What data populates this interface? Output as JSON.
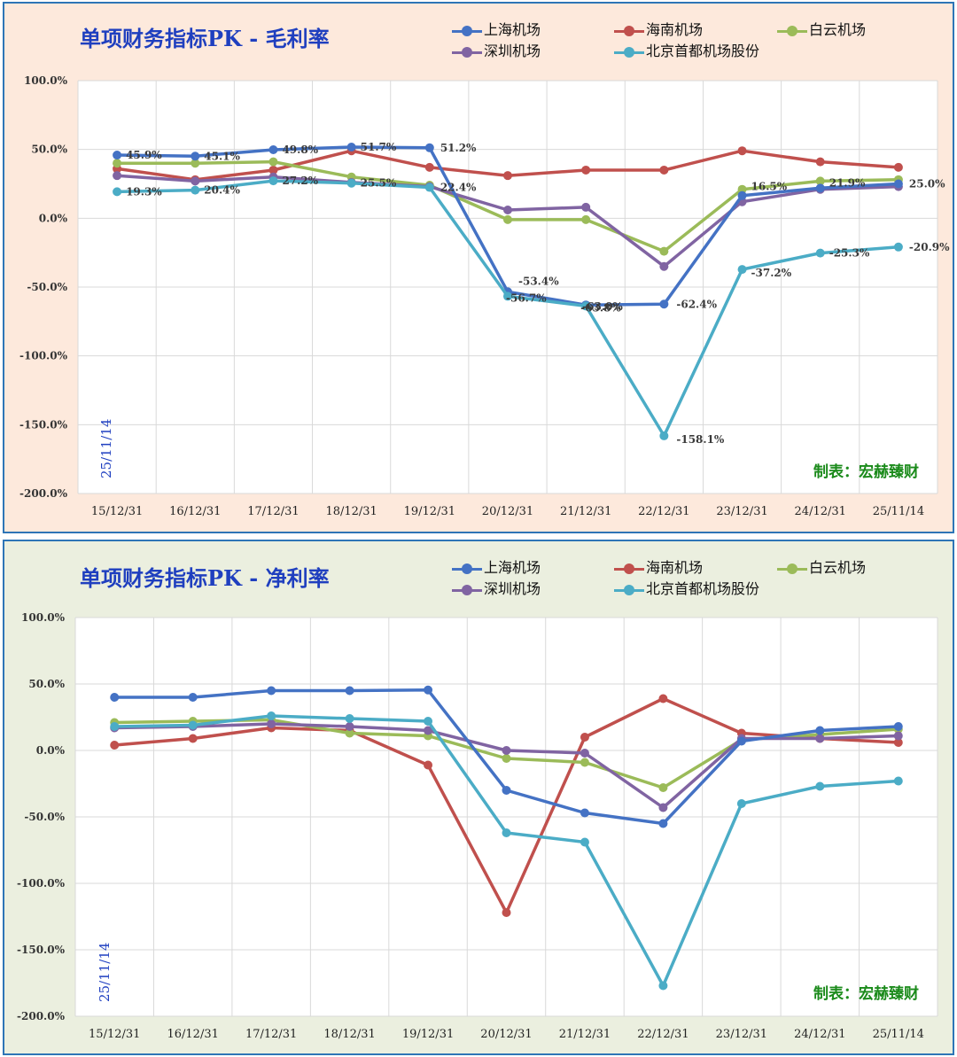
{
  "colors": {
    "上海机场": "#4472c4",
    "海南机场": "#c0504d",
    "白云机场": "#9bbb59",
    "深圳机场": "#8064a2",
    "北京首都机场股份": "#4bacc6"
  },
  "legend_order": [
    "上海机场",
    "海南机场",
    "白云机场",
    "深圳机场",
    "北京首都机场股份"
  ],
  "credit": "制表：宏赫臻财",
  "datestamp": "25/11/14",
  "chart_data": [
    {
      "type": "line",
      "title": "单项财务指标PK - 毛利率",
      "categories": [
        "15/12/31",
        "16/12/31",
        "17/12/31",
        "18/12/31",
        "19/12/31",
        "20/12/31",
        "21/12/31",
        "22/12/31",
        "23/12/31",
        "24/12/31",
        "25/11/14"
      ],
      "ylim": [
        -200,
        100
      ],
      "yticks": [
        "100.0%",
        "50.0%",
        "0.0%",
        "-50.0%",
        "-100.0%",
        "-150.0%",
        "-200.0%"
      ],
      "grid": true,
      "legend": "top",
      "series": [
        {
          "name": "上海机场",
          "values": [
            45.9,
            45.1,
            49.8,
            51.7,
            51.2,
            -53.4,
            -63.0,
            -62.4,
            16.5,
            21.9,
            25.0
          ]
        },
        {
          "name": "海南机场",
          "values": [
            36,
            28,
            35,
            49,
            37,
            31,
            35,
            35,
            49,
            41,
            37
          ]
        },
        {
          "name": "白云机场",
          "values": [
            40,
            40,
            41,
            30,
            24,
            -1,
            -1,
            -24,
            21,
            27,
            28
          ]
        },
        {
          "name": "深圳机场",
          "values": [
            31,
            27,
            30,
            26,
            23,
            6,
            8,
            -35,
            12,
            21,
            23
          ]
        },
        {
          "name": "北京首都机场股份",
          "values": [
            19.3,
            20.4,
            27.2,
            25.5,
            22.4,
            -56.7,
            -63.8,
            -158.1,
            -37.2,
            -25.3,
            -20.9
          ]
        }
      ],
      "labels": [
        {
          "text": "45.9%",
          "series": "上海机场",
          "index": 0
        },
        {
          "text": "45.1%",
          "series": "上海机场",
          "index": 1
        },
        {
          "text": "49.8%",
          "series": "上海机场",
          "index": 2
        },
        {
          "text": "51.7%",
          "series": "上海机场",
          "index": 3
        },
        {
          "text": "51.2%",
          "series": "上海机场",
          "index": 4
        },
        {
          "text": "-53.4%",
          "series": "上海机场",
          "index": 5
        },
        {
          "text": "-63.0%",
          "series": "上海机场",
          "index": 6
        },
        {
          "text": "-62.4%",
          "series": "上海机场",
          "index": 7
        },
        {
          "text": "16.5%",
          "series": "上海机场",
          "index": 8
        },
        {
          "text": "21.9%",
          "series": "上海机场",
          "index": 9
        },
        {
          "text": "25.0%",
          "series": "上海机场",
          "index": 10
        },
        {
          "text": "19.3%",
          "series": "北京首都机场股份",
          "index": 0
        },
        {
          "text": "20.4%",
          "series": "北京首都机场股份",
          "index": 1
        },
        {
          "text": "27.2%",
          "series": "北京首都机场股份",
          "index": 2
        },
        {
          "text": "25.5%",
          "series": "北京首都机场股份",
          "index": 3
        },
        {
          "text": "22.4%",
          "series": "北京首都机场股份",
          "index": 4
        },
        {
          "text": "-56.7%",
          "series": "北京首都机场股份",
          "index": 5
        },
        {
          "text": "-63.8%",
          "series": "北京首都机场股份",
          "index": 6
        },
        {
          "text": "-158.1%",
          "series": "北京首都机场股份",
          "index": 7
        },
        {
          "text": "-37.2%",
          "series": "北京首都机场股份",
          "index": 8
        },
        {
          "text": "-25.3%",
          "series": "北京首都机场股份",
          "index": 9
        },
        {
          "text": "-20.9%",
          "series": "北京首都机场股份",
          "index": 10
        }
      ]
    },
    {
      "type": "line",
      "title": "单项财务指标PK - 净利率",
      "categories": [
        "15/12/31",
        "16/12/31",
        "17/12/31",
        "18/12/31",
        "19/12/31",
        "20/12/31",
        "21/12/31",
        "22/12/31",
        "23/12/31",
        "24/12/31",
        "25/11/14"
      ],
      "ylim": [
        -200,
        100
      ],
      "yticks": [
        "100.0%",
        "50.0%",
        "0.0%",
        "-50.0%",
        "-100.0%",
        "-150.0%",
        "-200.0%"
      ],
      "grid": true,
      "legend": "top",
      "series": [
        {
          "name": "上海机场",
          "values": [
            40,
            40,
            45,
            45,
            45.5,
            -30,
            -47,
            -55,
            7,
            15,
            18
          ]
        },
        {
          "name": "海南机场",
          "values": [
            4,
            9,
            17,
            15,
            -11,
            -122,
            10,
            39,
            13,
            9,
            6
          ]
        },
        {
          "name": "白云机场",
          "values": [
            21,
            22,
            23,
            13,
            11,
            -6,
            -9,
            -28,
            8,
            12,
            16
          ]
        },
        {
          "name": "深圳机场",
          "values": [
            17,
            18,
            20,
            18,
            15,
            0,
            -2,
            -43,
            9,
            9,
            11
          ]
        },
        {
          "name": "北京首都机场股份",
          "values": [
            18,
            19,
            26,
            24,
            22,
            -62,
            -69,
            -177,
            -40,
            -27,
            -23
          ]
        }
      ],
      "labels": []
    }
  ]
}
